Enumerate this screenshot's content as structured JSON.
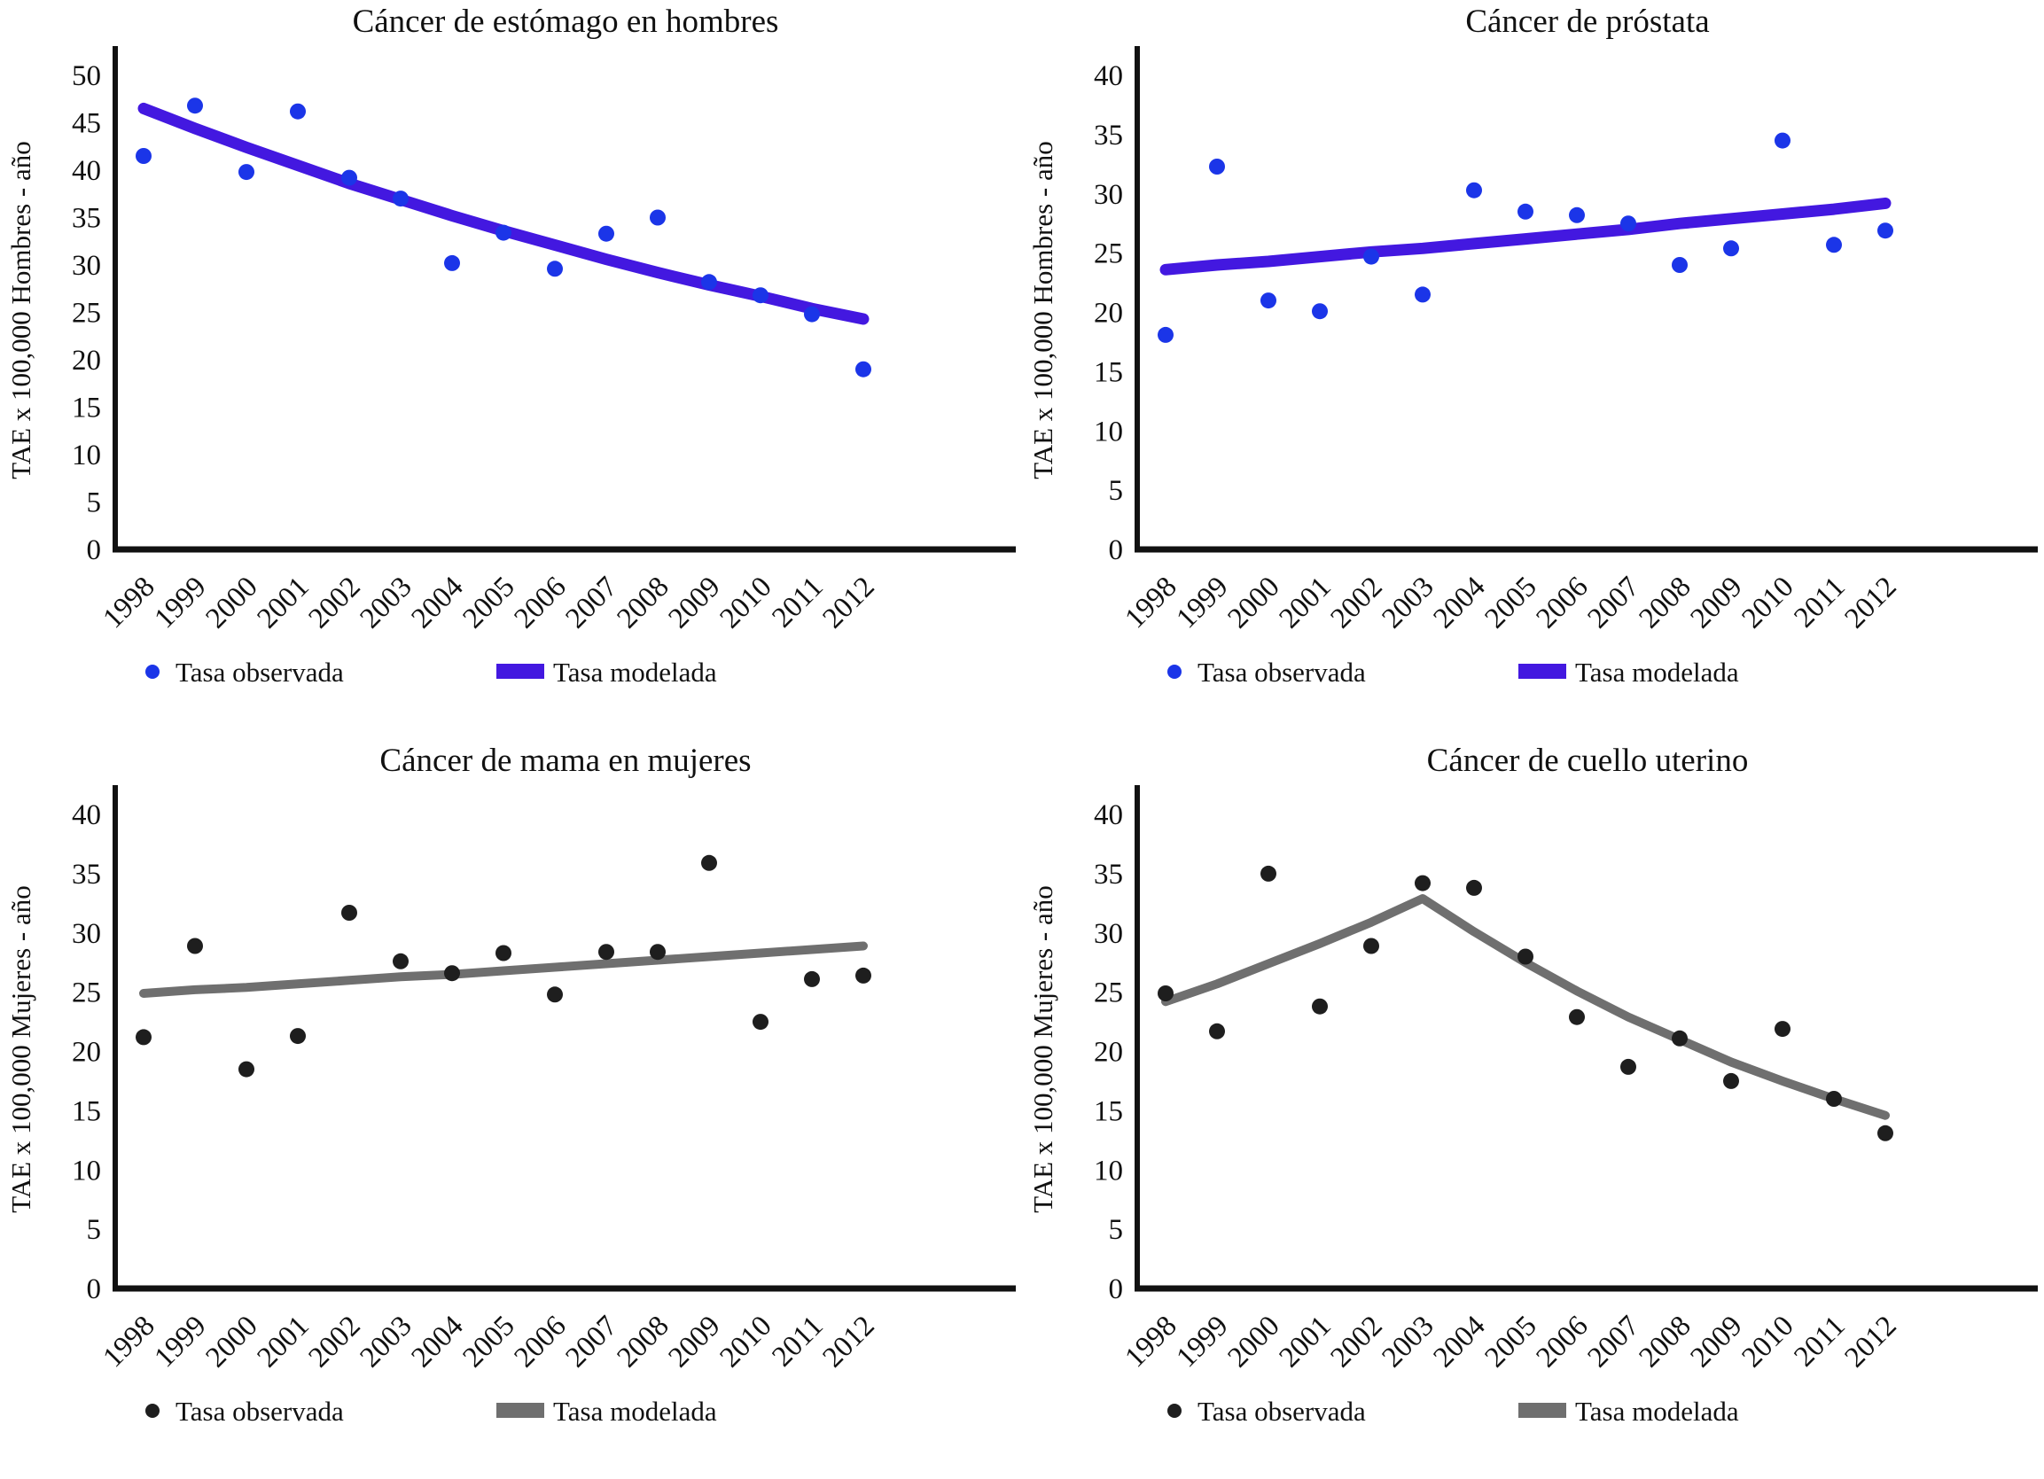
{
  "figure": {
    "background": "#ffffff",
    "text_color": "#111111",
    "axis_color": "#111111"
  },
  "chart_data": [
    {
      "id": "estomago-hombres",
      "type": "scatter",
      "title": "Cáncer de estómago en hombres",
      "ylabel": "TAE x 100,000 Hombres - año",
      "xlabel": "",
      "ylim": [
        0,
        50
      ],
      "ystep": 5,
      "grid": false,
      "legend_position": "bottom",
      "x": [
        "1998",
        "1999",
        "2000",
        "2001",
        "2002",
        "2003",
        "2004",
        "2005",
        "2006",
        "2007",
        "2008",
        "2009",
        "2010",
        "2011",
        "2012"
      ],
      "series": [
        {
          "name": "Tasa observada",
          "type": "scatter",
          "color": "#1B35E8",
          "values": [
            41.5,
            46.8,
            39.8,
            46.2,
            39.2,
            37.0,
            30.2,
            33.4,
            29.6,
            33.3,
            35.0,
            28.2,
            26.8,
            24.8,
            19.0
          ]
        },
        {
          "name": "Tasa modelada",
          "type": "line",
          "color": "#4318E0",
          "width": 13,
          "values": [
            46.5,
            44.4,
            42.4,
            40.5,
            38.6,
            36.9,
            35.2,
            33.6,
            32.1,
            30.6,
            29.2,
            27.9,
            26.7,
            25.4,
            24.3
          ]
        }
      ]
    },
    {
      "id": "prostata",
      "type": "scatter",
      "title": "Cáncer de próstata",
      "ylabel": "TAE x 100,000 Hombres - año",
      "xlabel": "",
      "ylim": [
        0,
        40
      ],
      "ystep": 5,
      "grid": false,
      "legend_position": "bottom",
      "x": [
        "1998",
        "1999",
        "2000",
        "2001",
        "2002",
        "2003",
        "2004",
        "2005",
        "2006",
        "2007",
        "2008",
        "2009",
        "2010",
        "2011",
        "2012"
      ],
      "series": [
        {
          "name": "Tasa observada",
          "type": "scatter",
          "color": "#1B35E8",
          "values": [
            18.1,
            32.3,
            21.0,
            20.1,
            24.7,
            21.5,
            30.3,
            28.5,
            28.2,
            27.5,
            24.0,
            25.4,
            34.5,
            25.7,
            26.9
          ]
        },
        {
          "name": "Tasa modelada",
          "type": "line",
          "color": "#4318E0",
          "width": 13,
          "values": [
            23.6,
            24.0,
            24.3,
            24.7,
            25.1,
            25.4,
            25.8,
            26.2,
            26.6,
            27.0,
            27.5,
            27.9,
            28.3,
            28.7,
            29.2
          ]
        }
      ]
    },
    {
      "id": "mama-mujeres",
      "type": "scatter",
      "title": "Cáncer de mama en mujeres",
      "ylabel": "TAE x 100,000 Mujeres - año",
      "xlabel": "",
      "ylim": [
        0,
        40
      ],
      "ystep": 5,
      "grid": false,
      "legend_position": "bottom",
      "x": [
        "1998",
        "1999",
        "2000",
        "2001",
        "2002",
        "2003",
        "2004",
        "2005",
        "2006",
        "2007",
        "2008",
        "2009",
        "2010",
        "2011",
        "2012"
      ],
      "series": [
        {
          "name": "Tasa observada",
          "type": "scatter",
          "color": "#1E1E1E",
          "values": [
            21.2,
            28.9,
            18.5,
            21.3,
            31.7,
            27.6,
            26.6,
            28.3,
            24.8,
            28.4,
            28.4,
            35.9,
            22.5,
            26.1,
            26.4
          ]
        },
        {
          "name": "Tasa modelada",
          "type": "line",
          "color": "#6F6F6F",
          "width": 10,
          "values": [
            24.9,
            25.2,
            25.4,
            25.7,
            26.0,
            26.3,
            26.5,
            26.8,
            27.1,
            27.4,
            27.7,
            28.0,
            28.3,
            28.6,
            28.9
          ]
        }
      ]
    },
    {
      "id": "cuello-uterino",
      "type": "scatter",
      "title": "Cáncer de cuello uterino",
      "ylabel": "TAE x 100,000 Mujeres - año",
      "xlabel": "",
      "ylim": [
        0,
        40
      ],
      "ystep": 5,
      "grid": false,
      "legend_position": "bottom",
      "x": [
        "1998",
        "1999",
        "2000",
        "2001",
        "2002",
        "2003",
        "2004",
        "2005",
        "2006",
        "2007",
        "2008",
        "2009",
        "2010",
        "2011",
        "2012"
      ],
      "series": [
        {
          "name": "Tasa observada",
          "type": "scatter",
          "color": "#1E1E1E",
          "values": [
            24.9,
            21.7,
            35.0,
            23.8,
            28.9,
            34.2,
            33.8,
            28.0,
            22.9,
            18.7,
            21.1,
            17.5,
            21.9,
            16.0,
            13.1
          ]
        },
        {
          "name": "Tasa modelada",
          "type": "line",
          "color": "#6F6F6F",
          "width": 10,
          "values": [
            24.2,
            25.7,
            27.4,
            29.1,
            30.9,
            32.9,
            30.1,
            27.5,
            25.1,
            22.9,
            21.0,
            19.1,
            17.5,
            16.0,
            14.6
          ]
        }
      ]
    }
  ]
}
